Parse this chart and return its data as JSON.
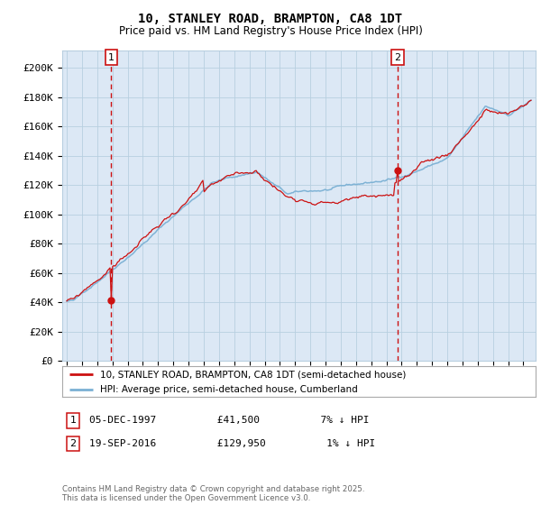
{
  "title": "10, STANLEY ROAD, BRAMPTON, CA8 1DT",
  "subtitle": "Price paid vs. HM Land Registry's House Price Index (HPI)",
  "ylabel_ticks": [
    "£0",
    "£20K",
    "£40K",
    "£60K",
    "£80K",
    "£100K",
    "£120K",
    "£140K",
    "£160K",
    "£180K",
    "£200K"
  ],
  "ylim": [
    0,
    212000
  ],
  "xlim_start": 1994.7,
  "xlim_end": 2025.8,
  "sale1_date": 1997.92,
  "sale1_price": 41500,
  "sale1_label": "1",
  "sale1_text": "05-DEC-1997          £41,500          7% ↓ HPI",
  "sale2_date": 2016.72,
  "sale2_price": 129950,
  "sale2_label": "2",
  "sale2_text": "19-SEP-2016          £129,950          1% ↓ HPI",
  "legend_line1": "10, STANLEY ROAD, BRAMPTON, CA8 1DT (semi-detached house)",
  "legend_line2": "HPI: Average price, semi-detached house, Cumberland",
  "footer": "Contains HM Land Registry data © Crown copyright and database right 2025.\nThis data is licensed under the Open Government Licence v3.0.",
  "hpi_color": "#7ab0d4",
  "price_color": "#cc1111",
  "bg_color": "#dce8f5",
  "plot_bg": "#ffffff",
  "grid_color": "#b8cfe0",
  "dashed_color": "#cc1111"
}
